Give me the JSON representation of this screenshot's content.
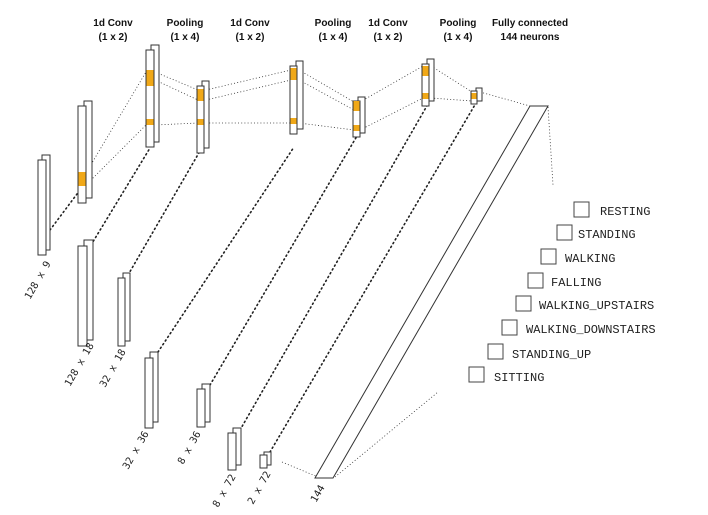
{
  "colors": {
    "highlight": "#f0a818",
    "stroke": "#333333"
  },
  "headers": [
    {
      "line1": "1d Conv",
      "line2": "(1 x 2)"
    },
    {
      "line1": "Pooling",
      "line2": "(1 x 4)"
    },
    {
      "line1": "1d Conv",
      "line2": "(1 x 2)"
    },
    {
      "line1": "Pooling",
      "line2": "(1 x 4)"
    },
    {
      "line1": "1d Conv",
      "line2": "(1 x 2)"
    },
    {
      "line1": "Pooling",
      "line2": "(1 x 4)"
    },
    {
      "line1": "Fully connected",
      "line2": "144 neurons"
    }
  ],
  "dimensions": [
    "128 x 9",
    "128 x 18",
    "32 x 18",
    "32 x 36",
    "8 x 36",
    "8 x 72",
    "2 x 72",
    "144"
  ],
  "classes": [
    "RESTING",
    "STANDING",
    "WALKING",
    "FALLING",
    "WALKING_UPSTAIRS",
    "WALKING_DOWNSTAIRS",
    "STANDING_UP",
    "SITTING"
  ]
}
